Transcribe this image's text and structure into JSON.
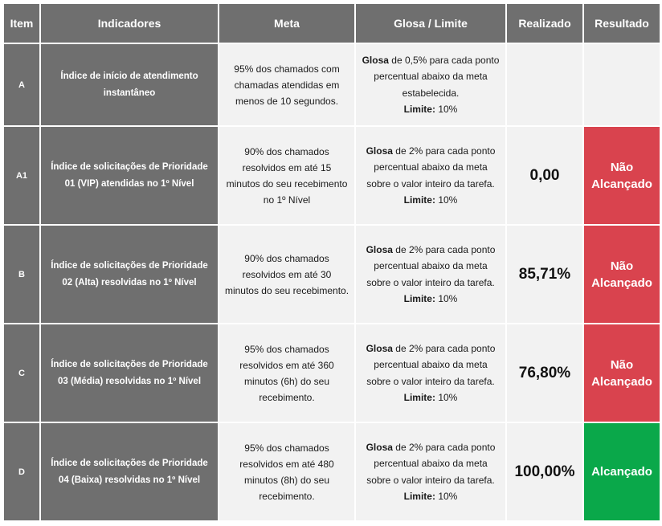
{
  "headers": {
    "item": "Item",
    "indicadores": "Indicadores",
    "meta": "Meta",
    "glosa": "Glosa / Limite",
    "realizado": "Realizado",
    "resultado": "Resultado"
  },
  "rows": [
    {
      "item": "A",
      "indicador": "Índice de início de atendimento instantâneo",
      "meta": "95% dos chamados com chamadas atendidas em menos de 10 segundos.",
      "glosa_label": "Glosa",
      "glosa_text": " de 0,5% para cada ponto percentual abaixo da meta estabelecida.",
      "limite_label": "Limite:",
      "limite_value": " 10%",
      "realizado": "",
      "resultado": ""
    },
    {
      "item": "A1",
      "indicador": "Índice de solicitações de Prioridade 01 (VIP) atendidas no 1º Nível",
      "meta": "90% dos chamados resolvidos em até 15 minutos do seu recebimento no 1º Nível",
      "glosa_label": "Glosa",
      "glosa_text": " de 2%  para cada ponto percentual abaixo da meta sobre o valor inteiro da tarefa.",
      "limite_label": "Limite:",
      "limite_value": " 10%",
      "realizado": "0,00",
      "resultado": "Não Alcançado",
      "resultado_color": "#d9434e"
    },
    {
      "item": "B",
      "indicador": "Índice de solicitações de Prioridade 02 (Alta) resolvidas no 1º Nível",
      "meta": "90% dos chamados resolvidos em até 30 minutos do seu recebimento.",
      "glosa_label": "Glosa",
      "glosa_text": " de 2%  para cada ponto percentual abaixo da meta sobre o valor inteiro da tarefa.",
      "limite_label": "Limite:",
      "limite_value": " 10%",
      "realizado": "85,71%",
      "resultado": "Não Alcançado",
      "resultado_color": "#d9434e"
    },
    {
      "item": "C",
      "indicador": "Índice de solicitações de Prioridade 03 (Média) resolvidas no 1º Nível",
      "meta": "95% dos chamados resolvidos em até 360 minutos (6h) do seu recebimento.",
      "glosa_label": "Glosa",
      "glosa_text": " de 2%  para cada ponto percentual abaixo da meta sobre o valor inteiro da tarefa.",
      "limite_label": "Limite:",
      "limite_value": " 10%",
      "realizado": "76,80%",
      "resultado": "Não Alcançado",
      "resultado_color": "#d9434e"
    },
    {
      "item": "D",
      "indicador": "Índice de solicitações de Prioridade 04 (Baixa) resolvidas no 1º Nível",
      "meta": "95% dos chamados resolvidos em até 480 minutos (8h) do seu recebimento.",
      "glosa_label": "Glosa",
      "glosa_text": " de 2%  para cada ponto percentual abaixo da meta sobre o valor inteiro da tarefa.",
      "limite_label": "Limite:",
      "limite_value": " 10%",
      "realizado": "100,00%",
      "resultado": "Alcançado",
      "resultado_color": "#0aa84a"
    }
  ],
  "colors": {
    "header_bg": "#6f6f6f",
    "cell_bg": "#f2f2f2",
    "fail": "#d9434e",
    "ok": "#0aa84a"
  }
}
